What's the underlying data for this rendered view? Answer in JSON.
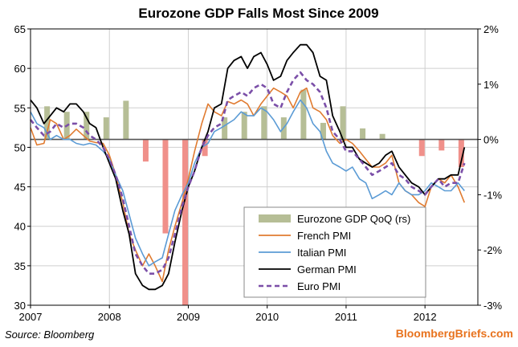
{
  "chart_data": {
    "type": "line",
    "title": "Eurozone GDP Falls Most Since 2009",
    "source": "Source: Bloomberg",
    "brand": "BloombergBriefs.com",
    "xlim": [
      2007.0,
      2012.67
    ],
    "ylim": [
      30,
      65
    ],
    "y2lim": [
      -3,
      2
    ],
    "x_ticks": [
      2007,
      2008,
      2009,
      2010,
      2011,
      2012
    ],
    "x_tick_labels": [
      "2007",
      "2008",
      "2009",
      "2010",
      "2011",
      "2012"
    ],
    "y_ticks": [
      30,
      35,
      40,
      45,
      50,
      55,
      60,
      65
    ],
    "y_tick_labels": [
      "30",
      "35",
      "40",
      "45",
      "50",
      "55",
      "60",
      "65"
    ],
    "y2_ticks": [
      -3,
      -2,
      -1,
      0,
      1,
      2
    ],
    "y2_tick_labels": [
      "-3%",
      "-2%",
      "-1%",
      "0%",
      "1%",
      "2%"
    ],
    "grid": true,
    "legend_position": "bottom-right",
    "legend": [
      {
        "label": "Eurozone GDP QoQ (rs)",
        "kind": "bar",
        "color": "#b6be96"
      },
      {
        "label": "French PMI",
        "kind": "line",
        "color": "#e07b30"
      },
      {
        "label": "Italian PMI",
        "kind": "line",
        "color": "#5b9bd5"
      },
      {
        "label": "German PMI",
        "kind": "line",
        "color": "#000000"
      },
      {
        "label": "Euro PMI",
        "kind": "dashed",
        "color": "#7b4fa8"
      }
    ],
    "gdp_bars": {
      "name": "Eurozone GDP QoQ (rs)",
      "positive_color": "#b6be96",
      "negative_color": "#f0908a",
      "x": [
        2007.21,
        2007.46,
        2007.71,
        2007.96,
        2008.21,
        2008.46,
        2008.71,
        2008.96,
        2009.21,
        2009.46,
        2009.71,
        2009.96,
        2010.21,
        2010.46,
        2010.71,
        2010.96,
        2011.21,
        2011.46,
        2011.71,
        2011.96,
        2012.21,
        2012.46
      ],
      "values": [
        0.6,
        0.5,
        0.5,
        0.4,
        0.7,
        -0.4,
        -1.7,
        -3.0,
        -0.3,
        0.4,
        0.5,
        0.6,
        0.4,
        0.9,
        0.3,
        0.6,
        0.2,
        0.1,
        0.0,
        -0.3,
        -0.2,
        -0.5
      ]
    },
    "series": [
      {
        "name": "French PMI",
        "color": "#e07b30",
        "width": 1.6,
        "dash": "",
        "x": [
          2007.0,
          2007.08,
          2007.17,
          2007.25,
          2007.33,
          2007.42,
          2007.5,
          2007.58,
          2007.67,
          2007.75,
          2007.83,
          2007.92,
          2008.0,
          2008.08,
          2008.17,
          2008.25,
          2008.33,
          2008.42,
          2008.5,
          2008.58,
          2008.67,
          2008.75,
          2008.83,
          2008.92,
          2009.0,
          2009.08,
          2009.17,
          2009.25,
          2009.33,
          2009.42,
          2009.5,
          2009.58,
          2009.67,
          2009.75,
          2009.83,
          2009.92,
          2010.0,
          2010.08,
          2010.17,
          2010.25,
          2010.33,
          2010.42,
          2010.5,
          2010.58,
          2010.67,
          2010.75,
          2010.83,
          2010.92,
          2011.0,
          2011.08,
          2011.17,
          2011.25,
          2011.33,
          2011.42,
          2011.5,
          2011.58,
          2011.67,
          2011.75,
          2011.83,
          2011.92,
          2012.0,
          2012.08,
          2012.17,
          2012.25,
          2012.33,
          2012.42,
          2012.5
        ],
        "values": [
          52.5,
          50.3,
          50.5,
          53.5,
          53.0,
          51.0,
          51.5,
          52.3,
          51.5,
          50.8,
          50.6,
          50.5,
          49.0,
          46.5,
          43.0,
          39.0,
          37.0,
          35.0,
          36.5,
          35.0,
          33.0,
          37.0,
          40.0,
          43.0,
          46.0,
          49.5,
          53.0,
          55.5,
          54.5,
          54.0,
          55.8,
          55.5,
          56.0,
          55.5,
          54.0,
          55.5,
          56.5,
          57.5,
          57.0,
          56.5,
          55.0,
          57.0,
          57.5,
          55.0,
          54.5,
          53.5,
          51.5,
          50.5,
          51.0,
          50.5,
          49.5,
          48.5,
          47.5,
          47.5,
          48.0,
          49.0,
          45.5,
          44.5,
          44.0,
          43.0,
          42.5,
          45.0,
          46.0,
          45.5,
          46.5,
          45.0,
          43.0
        ]
      },
      {
        "name": "Italian PMI",
        "color": "#5b9bd5",
        "width": 1.6,
        "dash": "",
        "x": [
          2007.0,
          2007.08,
          2007.17,
          2007.25,
          2007.33,
          2007.42,
          2007.5,
          2007.58,
          2007.67,
          2007.75,
          2007.83,
          2007.92,
          2008.0,
          2008.08,
          2008.17,
          2008.25,
          2008.33,
          2008.42,
          2008.5,
          2008.58,
          2008.67,
          2008.75,
          2008.83,
          2008.92,
          2009.0,
          2009.08,
          2009.17,
          2009.25,
          2009.33,
          2009.42,
          2009.5,
          2009.58,
          2009.67,
          2009.75,
          2009.83,
          2009.92,
          2010.0,
          2010.08,
          2010.17,
          2010.25,
          2010.33,
          2010.42,
          2010.5,
          2010.58,
          2010.67,
          2010.75,
          2010.83,
          2010.92,
          2011.0,
          2011.08,
          2011.17,
          2011.25,
          2011.33,
          2011.42,
          2011.5,
          2011.58,
          2011.67,
          2011.75,
          2011.83,
          2011.92,
          2012.0,
          2012.08,
          2012.17,
          2012.25,
          2012.33,
          2012.42,
          2012.5
        ],
        "values": [
          54.5,
          53.0,
          52.5,
          51.0,
          51.5,
          51.0,
          51.0,
          50.5,
          50.3,
          50.5,
          50.3,
          49.5,
          48.5,
          46.5,
          44.5,
          41.5,
          38.5,
          36.5,
          35.0,
          35.5,
          36.0,
          39.0,
          42.0,
          44.0,
          45.5,
          48.0,
          50.0,
          50.5,
          52.0,
          52.5,
          53.0,
          53.5,
          54.5,
          54.0,
          54.0,
          55.0,
          54.5,
          53.5,
          52.0,
          53.0,
          54.5,
          56.0,
          55.0,
          53.0,
          52.0,
          49.5,
          48.0,
          47.5,
          47.0,
          47.5,
          46.0,
          45.5,
          43.5,
          44.0,
          44.5,
          44.0,
          45.5,
          44.5,
          44.0,
          44.0,
          44.5,
          45.5,
          45.0,
          44.5,
          44.5,
          45.5,
          44.5
        ]
      },
      {
        "name": "German PMI",
        "color": "#000000",
        "width": 1.8,
        "dash": "",
        "x": [
          2007.0,
          2007.08,
          2007.17,
          2007.25,
          2007.33,
          2007.42,
          2007.5,
          2007.58,
          2007.67,
          2007.75,
          2007.83,
          2007.92,
          2008.0,
          2008.08,
          2008.17,
          2008.25,
          2008.33,
          2008.42,
          2008.5,
          2008.58,
          2008.67,
          2008.75,
          2008.83,
          2008.92,
          2009.0,
          2009.08,
          2009.17,
          2009.25,
          2009.33,
          2009.42,
          2009.5,
          2009.58,
          2009.67,
          2009.75,
          2009.83,
          2009.92,
          2010.0,
          2010.08,
          2010.17,
          2010.25,
          2010.33,
          2010.42,
          2010.5,
          2010.58,
          2010.67,
          2010.75,
          2010.83,
          2010.92,
          2011.0,
          2011.08,
          2011.17,
          2011.25,
          2011.33,
          2011.42,
          2011.5,
          2011.58,
          2011.67,
          2011.75,
          2011.83,
          2011.92,
          2012.0,
          2012.08,
          2012.17,
          2012.25,
          2012.33,
          2012.42,
          2012.5
        ],
        "values": [
          56.0,
          55.0,
          53.0,
          54.0,
          55.0,
          54.5,
          55.5,
          55.5,
          54.5,
          53.0,
          52.5,
          50.0,
          48.0,
          46.0,
          42.0,
          39.0,
          34.0,
          32.5,
          32.0,
          32.0,
          32.5,
          34.0,
          38.0,
          42.0,
          45.0,
          47.0,
          50.0,
          52.0,
          55.0,
          55.5,
          60.0,
          61.0,
          61.5,
          60.0,
          61.5,
          62.0,
          60.5,
          58.5,
          59.0,
          61.0,
          62.0,
          63.0,
          63.0,
          62.0,
          59.0,
          58.5,
          54.0,
          52.0,
          50.0,
          50.0,
          48.5,
          48.0,
          47.5,
          48.0,
          49.0,
          49.5,
          47.5,
          46.5,
          45.5,
          45.0,
          44.0,
          45.0,
          46.0,
          46.0,
          46.5,
          46.5,
          50.0
        ]
      },
      {
        "name": "Euro PMI",
        "color": "#7b4fa8",
        "width": 2.6,
        "dash": "6,4",
        "x": [
          2007.0,
          2007.08,
          2007.17,
          2007.25,
          2007.33,
          2007.42,
          2007.5,
          2007.58,
          2007.67,
          2007.75,
          2007.83,
          2007.92,
          2008.0,
          2008.08,
          2008.17,
          2008.25,
          2008.33,
          2008.42,
          2008.5,
          2008.58,
          2008.67,
          2008.75,
          2008.83,
          2008.92,
          2009.0,
          2009.08,
          2009.17,
          2009.25,
          2009.33,
          2009.42,
          2009.5,
          2009.58,
          2009.67,
          2009.75,
          2009.83,
          2009.92,
          2010.0,
          2010.08,
          2010.17,
          2010.25,
          2010.33,
          2010.42,
          2010.5,
          2010.58,
          2010.67,
          2010.75,
          2010.83,
          2010.92,
          2011.0,
          2011.08,
          2011.17,
          2011.25,
          2011.33,
          2011.42,
          2011.5,
          2011.58,
          2011.67,
          2011.75,
          2011.83,
          2011.92,
          2012.0,
          2012.08,
          2012.17,
          2012.25,
          2012.33,
          2012.42,
          2012.5
        ],
        "values": [
          53.5,
          52.5,
          51.5,
          52.0,
          53.0,
          52.5,
          53.0,
          53.0,
          52.5,
          51.5,
          51.0,
          50.0,
          48.5,
          46.5,
          43.5,
          40.0,
          36.5,
          35.0,
          34.0,
          34.0,
          34.5,
          36.0,
          39.0,
          42.5,
          45.0,
          47.0,
          50.0,
          51.5,
          52.5,
          53.0,
          56.0,
          56.5,
          57.0,
          56.5,
          57.5,
          58.0,
          57.5,
          55.5,
          55.0,
          57.0,
          58.5,
          59.5,
          58.5,
          58.0,
          57.0,
          55.0,
          52.0,
          51.0,
          49.5,
          49.5,
          48.5,
          47.5,
          46.5,
          47.0,
          47.5,
          48.0,
          46.5,
          46.0,
          45.0,
          44.5,
          44.0,
          45.0,
          46.0,
          45.0,
          45.5,
          45.5,
          48.0
        ]
      }
    ]
  }
}
